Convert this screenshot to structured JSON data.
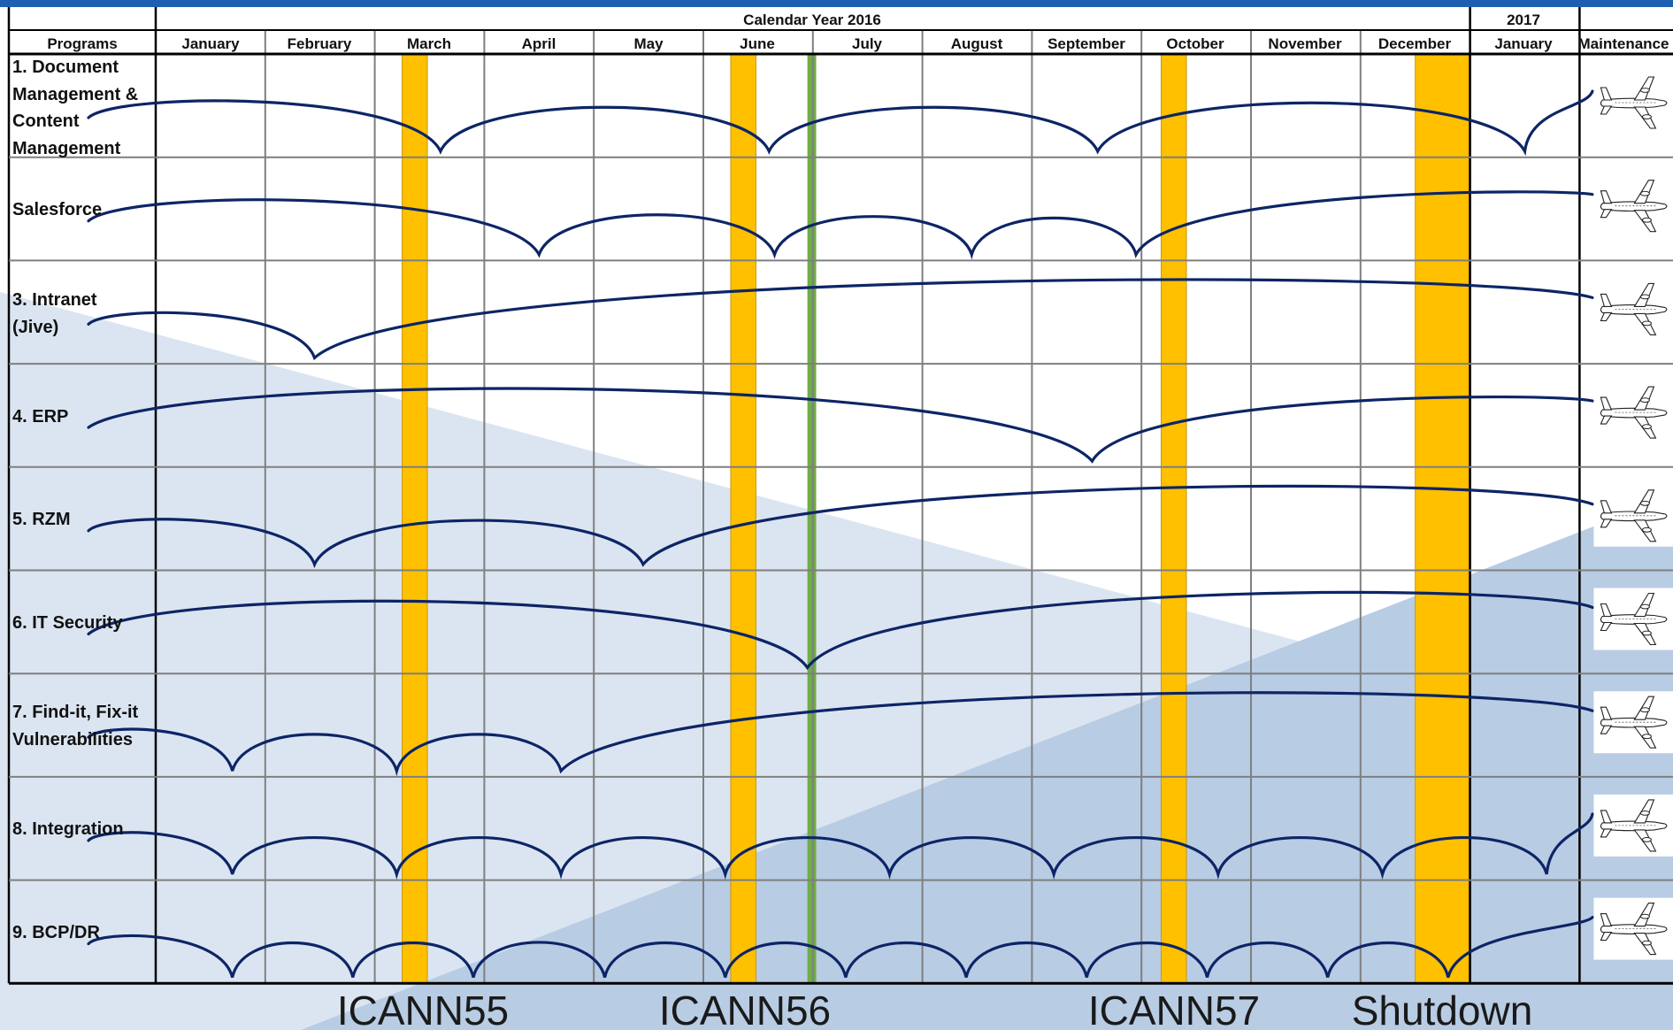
{
  "header": {
    "calendar_year": "Calendar Year 2016",
    "next_year": "2017",
    "programs_label": "Programs",
    "maintenance_label": "Maintenance"
  },
  "months": [
    "January",
    "February",
    "March",
    "April",
    "May",
    "June",
    "July",
    "August",
    "September",
    "October",
    "November",
    "December",
    "January"
  ],
  "programs": [
    {
      "lines": [
        "1. Document",
        "Management &",
        "Content",
        "Management"
      ]
    },
    {
      "lines": [
        "Salesforce"
      ]
    },
    {
      "lines": [
        "3. Intranet",
        "(Jive)"
      ]
    },
    {
      "lines": [
        "4. ERP"
      ]
    },
    {
      "lines": [
        "5. RZM"
      ]
    },
    {
      "lines": [
        "6. IT Security"
      ]
    },
    {
      "lines": [
        "7. Find-it, Fix-it",
        "Vulnerabilities"
      ]
    },
    {
      "lines": [
        "8. Integration"
      ]
    },
    {
      "lines": [
        "9. BCP/DR"
      ]
    }
  ],
  "arc_milestones": [
    [
      2.6,
      5.6,
      8.6,
      12.5
    ],
    [
      3.5,
      5.65,
      7.45,
      8.95
    ],
    [
      1.45
    ],
    [
      8.55
    ],
    [
      1.45,
      4.45
    ],
    [
      5.95
    ],
    [
      0.7,
      2.2,
      3.7
    ],
    [
      0.7,
      2.2,
      3.7,
      5.2,
      6.7,
      8.2,
      9.7,
      11.2,
      12.7
    ],
    [
      0.7,
      1.8,
      2.9,
      4.1,
      5.2,
      6.3,
      7.4,
      8.5,
      9.6,
      10.7,
      11.8
    ]
  ],
  "events": [
    {
      "label": "ICANN55",
      "type": "meeting",
      "month_pos": 2.25,
      "width": 0.23
    },
    {
      "label": "ICANN56",
      "type": "meeting",
      "month_pos": 5.25,
      "width": 0.23
    },
    {
      "label": "",
      "type": "marker",
      "month_pos": 5.95,
      "width": 0.08
    },
    {
      "label": "ICANN57",
      "type": "meeting",
      "month_pos": 9.18,
      "width": 0.23
    },
    {
      "label": "Shutdown",
      "type": "freeze",
      "month_pos": 11.5,
      "width": 0.49
    }
  ],
  "colors": {
    "arc": "#0d2566",
    "event_bar": "#ffc000",
    "marker_bar": "#70ad47",
    "top_band": "#1f5fb0",
    "grid": "#7f7f7f",
    "triangle_light": "#dbe5f1",
    "triangle_dark": "#b8cce4"
  },
  "maintenance_icon": "airplane-icon"
}
